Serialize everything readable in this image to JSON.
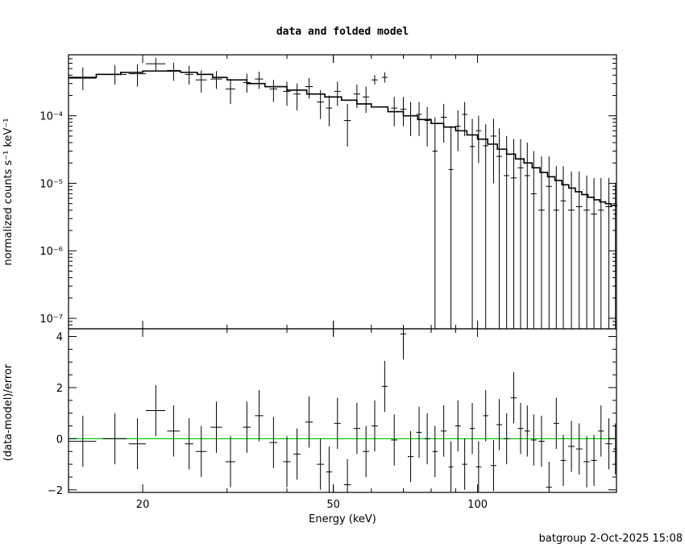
{
  "title": "data and folded model",
  "footer": "batgroup  2-Oct-2025 15:08",
  "colors": {
    "data": "#000000",
    "model": "#000000",
    "zero_line": "#00cc00"
  },
  "chart_data": [
    {
      "type": "line",
      "panel": "spectrum",
      "title": "data and folded model",
      "xlabel": "Energy (keV)",
      "ylabel": "normalized counts s⁻¹ keV⁻¹",
      "xscale": "log",
      "yscale": "log",
      "xlim": [
        14,
        195
      ],
      "ylim": [
        7e-08,
        0.0008
      ],
      "ytick_labels": [
        "10⁻⁷",
        "10⁻⁶",
        "10⁻⁵",
        "10⁻⁴"
      ],
      "ytick_values": [
        1e-07,
        1e-06,
        1e-05,
        0.0001
      ],
      "series": [
        {
          "kind": "data",
          "points": [
            {
              "x": 15,
              "xerr": 1,
              "y": 0.00036,
              "ylo": 0.00024,
              "yhi": 0.00052
            },
            {
              "x": 17.5,
              "xerr": 1,
              "y": 0.00041,
              "ylo": 0.00029,
              "yhi": 0.00056
            },
            {
              "x": 19.5,
              "xerr": 0.8,
              "y": 0.00042,
              "ylo": 0.00027,
              "yhi": 0.00058
            },
            {
              "x": 21.3,
              "xerr": 1,
              "y": 0.00059,
              "ylo": 0.00047,
              "yhi": 0.00072
            },
            {
              "x": 23.2,
              "xerr": 0.7,
              "y": 0.00047,
              "ylo": 0.00033,
              "yhi": 0.00061
            },
            {
              "x": 25,
              "xerr": 0.5,
              "y": 0.00041,
              "ylo": 0.00029,
              "yhi": 0.00055
            },
            {
              "x": 26.5,
              "xerr": 0.7,
              "y": 0.00034,
              "ylo": 0.00022,
              "yhi": 0.00047
            },
            {
              "x": 28.5,
              "xerr": 0.8,
              "y": 0.00035,
              "ylo": 0.00025,
              "yhi": 0.00046
            },
            {
              "x": 30.5,
              "xerr": 0.7,
              "y": 0.00025,
              "ylo": 0.00015,
              "yhi": 0.00035
            },
            {
              "x": 33,
              "xerr": 0.6,
              "y": 0.00031,
              "ylo": 0.00022,
              "yhi": 0.00042
            },
            {
              "x": 35,
              "xerr": 0.7,
              "y": 0.00035,
              "ylo": 0.00025,
              "yhi": 0.00045
            },
            {
              "x": 37.5,
              "xerr": 0.7,
              "y": 0.00025,
              "ylo": 0.00016,
              "yhi": 0.00034
            },
            {
              "x": 40,
              "xerr": 0.7,
              "y": 0.00023,
              "ylo": 0.00014,
              "yhi": 0.00032
            },
            {
              "x": 42,
              "xerr": 0.7,
              "y": 0.00021,
              "ylo": 0.00012,
              "yhi": 0.0003
            },
            {
              "x": 44.5,
              "xerr": 0.8,
              "y": 0.00027,
              "ylo": 0.00018,
              "yhi": 0.00036
            },
            {
              "x": 47,
              "xerr": 0.8,
              "y": 0.00016,
              "ylo": 9e-05,
              "yhi": 0.00024
            },
            {
              "x": 49,
              "xerr": 0.7,
              "y": 0.00013,
              "ylo": 7e-05,
              "yhi": 0.0002
            },
            {
              "x": 51,
              "xerr": 0.8,
              "y": 0.00023,
              "ylo": 0.00014,
              "yhi": 0.00032
            },
            {
              "x": 53.5,
              "xerr": 0.9,
              "y": 8.5e-05,
              "ylo": 3.5e-05,
              "yhi": 0.00015
            },
            {
              "x": 56,
              "xerr": 0.9,
              "y": 0.00021,
              "ylo": 0.00013,
              "yhi": 0.00029
            },
            {
              "x": 58.5,
              "xerr": 0.9,
              "y": 0.00019,
              "ylo": 0.00011,
              "yhi": 0.00027
            },
            {
              "x": 61,
              "xerr": 0.9,
              "y": 0.00034,
              "ylo": 0.00029,
              "yhi": 0.0004
            },
            {
              "x": 64,
              "xerr": 0.9,
              "y": 0.00037,
              "ylo": 0.00031,
              "yhi": 0.00044
            },
            {
              "x": 67,
              "xerr": 1,
              "y": 0.00013,
              "ylo": 7e-05,
              "yhi": 0.00019
            },
            {
              "x": 70,
              "xerr": 1,
              "y": 0.000125,
              "ylo": 7e-05,
              "yhi": 0.00019
            },
            {
              "x": 72.5,
              "xerr": 1,
              "y": 0.0001,
              "ylo": 5e-05,
              "yhi": 0.00016
            },
            {
              "x": 75.5,
              "xerr": 1,
              "y": 0.000105,
              "ylo": 5e-05,
              "yhi": 0.00016
            },
            {
              "x": 78.5,
              "xerr": 1,
              "y": 8.5e-05,
              "ylo": 3.5e-05,
              "yhi": 0.000135
            },
            {
              "x": 81.5,
              "xerr": 1,
              "y": 3e-05,
              "ylo": 7e-08,
              "yhi": 9.5e-05
            },
            {
              "x": 85,
              "xerr": 1.2,
              "y": 9.5e-05,
              "ylo": 4e-05,
              "yhi": 0.00015
            },
            {
              "x": 88,
              "xerr": 1,
              "y": 1.6e-05,
              "ylo": 7e-08,
              "yhi": 7e-05
            },
            {
              "x": 91,
              "xerr": 1.2,
              "y": 7e-05,
              "ylo": 3e-05,
              "yhi": 0.00012
            },
            {
              "x": 94,
              "xerr": 1.2,
              "y": 0.000105,
              "ylo": 5e-05,
              "yhi": 0.00016
            },
            {
              "x": 97.5,
              "xerr": 1.2,
              "y": 3.5e-05,
              "ylo": 7e-08,
              "yhi": 9e-05
            },
            {
              "x": 100.5,
              "xerr": 1.3,
              "y": 6e-05,
              "ylo": 2e-05,
              "yhi": 0.0001
            },
            {
              "x": 104,
              "xerr": 1.3,
              "y": 3.6e-05,
              "ylo": 7e-08,
              "yhi": 7.5e-05
            },
            {
              "x": 108,
              "xerr": 1.5,
              "y": 5e-05,
              "ylo": 1e-05,
              "yhi": 9e-05
            },
            {
              "x": 111,
              "xerr": 1.5,
              "y": 2.5e-05,
              "ylo": 7e-08,
              "yhi": 6.5e-05
            },
            {
              "x": 115,
              "xerr": 1.5,
              "y": 1.3e-05,
              "ylo": 7e-08,
              "yhi": 5e-05
            },
            {
              "x": 119,
              "xerr": 1.7,
              "y": 1.2e-05,
              "ylo": 7e-08,
              "yhi": 4.5e-05
            },
            {
              "x": 123,
              "xerr": 1.7,
              "y": 1.7e-05,
              "ylo": 7e-08,
              "yhi": 4.5e-05
            },
            {
              "x": 127,
              "xerr": 1.7,
              "y": 1.3e-05,
              "ylo": 7e-08,
              "yhi": 4e-05
            },
            {
              "x": 131,
              "xerr": 1.8,
              "y": 7e-06,
              "ylo": 7e-08,
              "yhi": 3e-05
            },
            {
              "x": 136,
              "xerr": 2,
              "y": 4e-06,
              "ylo": 7e-08,
              "yhi": 2.5e-05
            },
            {
              "x": 141,
              "xerr": 2,
              "y": 9e-06,
              "ylo": 7e-08,
              "yhi": 2.5e-05
            },
            {
              "x": 146,
              "xerr": 2,
              "y": 4e-06,
              "ylo": 7e-08,
              "yhi": 1.8e-05
            },
            {
              "x": 151,
              "xerr": 2,
              "y": 5.5e-06,
              "ylo": 7e-08,
              "yhi": 1.8e-05
            },
            {
              "x": 157,
              "xerr": 2.5,
              "y": 4e-06,
              "ylo": 7e-08,
              "yhi": 1.5e-05
            },
            {
              "x": 163,
              "xerr": 2.5,
              "y": 4.5e-06,
              "ylo": 7e-08,
              "yhi": 1.5e-05
            },
            {
              "x": 169,
              "xerr": 2.5,
              "y": 4e-06,
              "ylo": 7e-08,
              "yhi": 1.3e-05
            },
            {
              "x": 175,
              "xerr": 2.5,
              "y": 3.5e-06,
              "ylo": 7e-08,
              "yhi": 1.2e-05
            },
            {
              "x": 181,
              "xerr": 2.5,
              "y": 4e-06,
              "ylo": 7e-08,
              "yhi": 1.2e-05
            },
            {
              "x": 188,
              "xerr": 3,
              "y": 4.5e-06,
              "ylo": 7e-08,
              "yhi": 1.2e-05
            },
            {
              "x": 194,
              "xerr": 2,
              "y": 3.5e-06,
              "ylo": 7e-08,
              "yhi": 1e-05
            }
          ]
        },
        {
          "kind": "model",
          "x": [
            14,
            16,
            18,
            20,
            22,
            24,
            26,
            28,
            30,
            33,
            36,
            40,
            44,
            48,
            52,
            56,
            60,
            65,
            70,
            75,
            80,
            85,
            90,
            95,
            100,
            105,
            110,
            115,
            120,
            125,
            130,
            135,
            140,
            145,
            150,
            155,
            160,
            165,
            170,
            175,
            180,
            185,
            190,
            195
          ],
          "y": [
            0.00037,
            0.00041,
            0.00044,
            0.00046,
            0.00046,
            0.00044,
            0.00041,
            0.00037,
            0.00034,
            0.0003,
            0.00027,
            0.00024,
            0.00021,
            0.00019,
            0.00017,
            0.00015,
            0.000135,
            0.000115,
            0.0001,
            8.8e-05,
            7.7e-05,
            6.8e-05,
            6e-05,
            5.2e-05,
            4.5e-05,
            3.8e-05,
            3.2e-05,
            2.7e-05,
            2.3e-05,
            2e-05,
            1.7e-05,
            1.45e-05,
            1.25e-05,
            1.1e-05,
            9.5e-06,
            8.5e-06,
            7.5e-06,
            6.8e-06,
            6.2e-06,
            5.7e-06,
            5.3e-06,
            5e-06,
            4.7e-06,
            4.5e-06
          ]
        }
      ]
    },
    {
      "type": "line",
      "panel": "residuals",
      "xlabel": "Energy (keV)",
      "ylabel": "(data-model)/error",
      "xscale": "log",
      "xlim": [
        14,
        195
      ],
      "ylim": [
        -2.1,
        4.3
      ],
      "xtick_labels": [
        "20",
        "50",
        "100"
      ],
      "xtick_values": [
        20,
        50,
        100
      ],
      "ytick_labels": [
        "−2",
        "0",
        "2",
        "4"
      ],
      "ytick_values": [
        -2,
        0,
        2,
        4
      ],
      "zero_line": 0,
      "series": [
        {
          "kind": "residuals",
          "points": [
            {
              "x": 15,
              "xerr": 1,
              "y": -0.1,
              "err": 1
            },
            {
              "x": 17.5,
              "xerr": 1,
              "y": 0.0,
              "err": 1
            },
            {
              "x": 19.5,
              "xerr": 0.8,
              "y": -0.2,
              "err": 1
            },
            {
              "x": 21.3,
              "xerr": 1,
              "y": 1.1,
              "err": 1
            },
            {
              "x": 23.2,
              "xerr": 0.7,
              "y": 0.3,
              "err": 1
            },
            {
              "x": 25,
              "xerr": 0.5,
              "y": -0.2,
              "err": 1
            },
            {
              "x": 26.5,
              "xerr": 0.7,
              "y": -0.5,
              "err": 1
            },
            {
              "x": 28.5,
              "xerr": 0.8,
              "y": 0.45,
              "err": 1
            },
            {
              "x": 30.5,
              "xerr": 0.7,
              "y": -0.9,
              "err": 1
            },
            {
              "x": 33,
              "xerr": 0.6,
              "y": 0.45,
              "err": 1
            },
            {
              "x": 35,
              "xerr": 0.7,
              "y": 0.9,
              "err": 1
            },
            {
              "x": 37.5,
              "xerr": 0.7,
              "y": -0.15,
              "err": 1
            },
            {
              "x": 40,
              "xerr": 0.7,
              "y": -0.9,
              "err": 1
            },
            {
              "x": 42,
              "xerr": 0.7,
              "y": -0.6,
              "err": 1
            },
            {
              "x": 44.5,
              "xerr": 0.8,
              "y": 0.65,
              "err": 1
            },
            {
              "x": 47,
              "xerr": 0.8,
              "y": -1.0,
              "err": 1
            },
            {
              "x": 49,
              "xerr": 0.7,
              "y": -1.3,
              "err": 1
            },
            {
              "x": 51,
              "xerr": 0.8,
              "y": 0.6,
              "err": 1
            },
            {
              "x": 53.5,
              "xerr": 0.9,
              "y": -1.8,
              "err": 1
            },
            {
              "x": 56,
              "xerr": 0.9,
              "y": 0.4,
              "err": 1
            },
            {
              "x": 58.5,
              "xerr": 0.9,
              "y": -0.5,
              "err": 1
            },
            {
              "x": 61,
              "xerr": 0.9,
              "y": 0.5,
              "err": 1
            },
            {
              "x": 64,
              "xerr": 0.9,
              "y": 2.05,
              "err": 1
            },
            {
              "x": 67,
              "xerr": 1,
              "y": -0.05,
              "err": 1
            },
            {
              "x": 70,
              "xerr": 1,
              "y": 4.1,
              "err": 1
            },
            {
              "x": 72.5,
              "xerr": 1,
              "y": -0.7,
              "err": 1
            },
            {
              "x": 75.5,
              "xerr": 1,
              "y": 0.25,
              "err": 1
            },
            {
              "x": 78.5,
              "xerr": 1,
              "y": 0.0,
              "err": 1
            },
            {
              "x": 81.5,
              "xerr": 1,
              "y": -0.5,
              "err": 1
            },
            {
              "x": 85,
              "xerr": 1.2,
              "y": 0.3,
              "err": 1
            },
            {
              "x": 88,
              "xerr": 1,
              "y": -1.1,
              "err": 1
            },
            {
              "x": 91,
              "xerr": 1.2,
              "y": 0.5,
              "err": 1
            },
            {
              "x": 94,
              "xerr": 1.2,
              "y": -1.0,
              "err": 1
            },
            {
              "x": 97.5,
              "xerr": 1.2,
              "y": 0.4,
              "err": 1
            },
            {
              "x": 100.5,
              "xerr": 1.3,
              "y": -1.1,
              "err": 1
            },
            {
              "x": 104,
              "xerr": 1.3,
              "y": 0.9,
              "err": 1
            },
            {
              "x": 108,
              "xerr": 1.5,
              "y": -1.05,
              "err": 1
            },
            {
              "x": 111,
              "xerr": 1.5,
              "y": 0.55,
              "err": 1
            },
            {
              "x": 115,
              "xerr": 1.5,
              "y": 0.0,
              "err": 1
            },
            {
              "x": 119,
              "xerr": 1.7,
              "y": 1.6,
              "err": 1
            },
            {
              "x": 123,
              "xerr": 1.7,
              "y": 0.4,
              "err": 1
            },
            {
              "x": 127,
              "xerr": 1.7,
              "y": 0.3,
              "err": 1
            },
            {
              "x": 131,
              "xerr": 1.8,
              "y": -0.05,
              "err": 1
            },
            {
              "x": 136,
              "xerr": 2,
              "y": -0.1,
              "err": 1
            },
            {
              "x": 141,
              "xerr": 2,
              "y": -1.9,
              "err": 1
            },
            {
              "x": 146,
              "xerr": 2,
              "y": 0.6,
              "err": 1
            },
            {
              "x": 151,
              "xerr": 2,
              "y": -0.85,
              "err": 1
            },
            {
              "x": 157,
              "xerr": 2.5,
              "y": -0.3,
              "err": 1
            },
            {
              "x": 163,
              "xerr": 2.5,
              "y": -0.4,
              "err": 1
            },
            {
              "x": 169,
              "xerr": 2.5,
              "y": -0.9,
              "err": 1
            },
            {
              "x": 175,
              "xerr": 2.5,
              "y": -0.85,
              "err": 1
            },
            {
              "x": 181,
              "xerr": 2.5,
              "y": 0.3,
              "err": 1
            },
            {
              "x": 188,
              "xerr": 3,
              "y": -0.2,
              "err": 1
            },
            {
              "x": 194,
              "xerr": 2,
              "y": -0.4,
              "err": 1
            }
          ]
        }
      ]
    }
  ]
}
